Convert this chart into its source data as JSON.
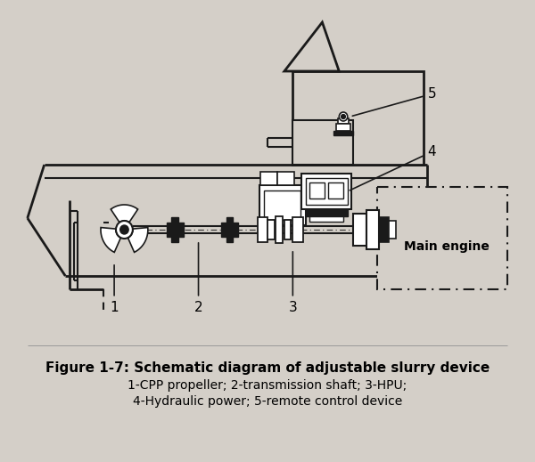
{
  "title": "Figure 1-7: Schematic diagram of adjustable slurry device",
  "caption_line1": "1-CPP propeller; 2-transmission shaft; 3-HPU;",
  "caption_line2": "4-Hydraulic power; 5-remote control device",
  "label_main_engine": "Main engine",
  "bg_color": "#d4cfc8",
  "line_color": "#1a1a1a",
  "title_fontsize": 11,
  "caption_fontsize": 10,
  "drawing_area_bg": "#cdc8c0"
}
